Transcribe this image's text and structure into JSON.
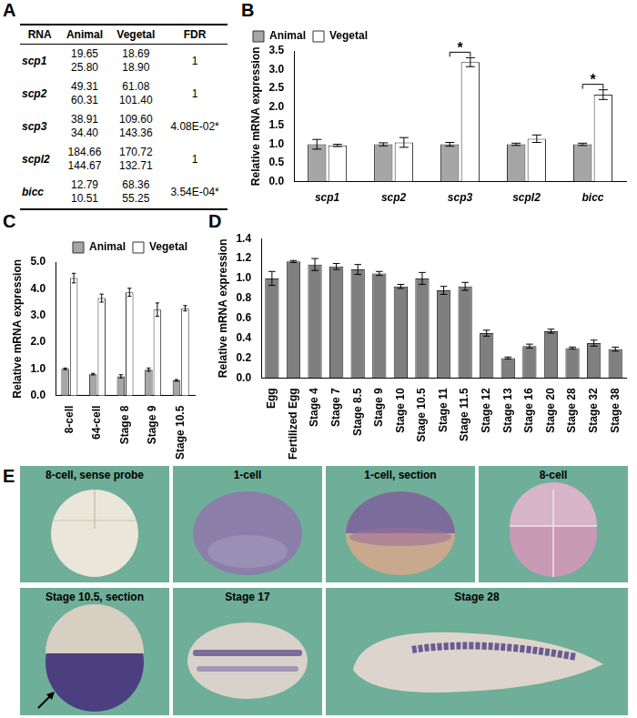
{
  "table": {
    "panel": "A",
    "header": [
      "RNA",
      "Animal",
      "Vegetal",
      "FDR"
    ],
    "rows": [
      [
        "scp1",
        [
          "19.65",
          "25.80"
        ],
        [
          "18.69",
          "18.90"
        ],
        "1"
      ],
      [
        "scp2",
        [
          "49.31",
          "60.31"
        ],
        [
          "61.08",
          "101.40"
        ],
        "1"
      ],
      [
        "scp3",
        [
          "38.91",
          "34.40"
        ],
        [
          "109.60",
          "143.36"
        ],
        "4.08E-02*"
      ],
      [
        "scpl2",
        [
          "184.66",
          "144.67"
        ],
        [
          "170.72",
          "132.71"
        ],
        "1"
      ],
      [
        "bicc",
        [
          "12.79",
          "10.51"
        ],
        [
          "68.36",
          "55.25"
        ],
        "3.54E-04*"
      ]
    ]
  },
  "chart_data": [
    {
      "panel": "B",
      "type": "bar",
      "categories": [
        "scp1",
        "scp2",
        "scp3",
        "scpl2",
        "bicc"
      ],
      "series": [
        {
          "name": "Animal",
          "color": "#a6a6a6",
          "values": [
            1.0,
            1.0,
            1.0,
            1.0,
            1.0
          ],
          "errors": [
            0.13,
            0.04,
            0.05,
            0.03,
            0.03
          ]
        },
        {
          "name": "Vegetal",
          "color": "#ffffff",
          "values": [
            0.97,
            1.05,
            3.2,
            1.15,
            2.33
          ],
          "errors": [
            0.03,
            0.13,
            0.12,
            0.1,
            0.13
          ]
        }
      ],
      "ylabel": "Relative mRNA expression",
      "ylim": [
        0,
        3.5
      ],
      "yticks": [
        {
          "value": 0,
          "label": "0.0"
        },
        {
          "value": 0.5,
          "label": "0.5"
        },
        {
          "value": 1,
          "label": "1.0"
        },
        {
          "value": 1.5,
          "label": "1.5"
        },
        {
          "value": 2,
          "label": "2.0"
        },
        {
          "value": 2.5,
          "label": "2.5"
        },
        {
          "value": 3,
          "label": "3.0"
        },
        {
          "value": 3.5,
          "label": "3.5"
        }
      ],
      "legend": "top-left",
      "annotations": [
        {
          "text": "*",
          "category": "scp3"
        },
        {
          "text": "*",
          "category": "bicc"
        }
      ]
    },
    {
      "panel": "C",
      "type": "bar",
      "categories": [
        "8-cell",
        "64-cell",
        "Stage 8",
        "Stage 9",
        "Stage 10.5"
      ],
      "series": [
        {
          "name": "Animal",
          "color": "#a6a6a6",
          "values": [
            1.0,
            0.8,
            0.72,
            0.97,
            0.57
          ],
          "errors": [
            0.03,
            0.03,
            0.06,
            0.06,
            0.03
          ]
        },
        {
          "name": "Vegetal",
          "color": "#ffffff",
          "values": [
            4.4,
            3.65,
            3.87,
            3.22,
            3.27
          ],
          "errors": [
            0.18,
            0.15,
            0.15,
            0.25,
            0.1
          ]
        }
      ],
      "ylabel": "Relative mRNA expression",
      "ylim": [
        0,
        5
      ],
      "yticks": [
        {
          "value": 0,
          "label": "0.0"
        },
        {
          "value": 1,
          "label": "1.0"
        },
        {
          "value": 2,
          "label": "2.0"
        },
        {
          "value": 3,
          "label": "3.0"
        },
        {
          "value": 4,
          "label": "4.0"
        },
        {
          "value": 5,
          "label": "5.0"
        }
      ],
      "legend": "top-right"
    },
    {
      "panel": "D",
      "type": "bar",
      "categories": [
        "Egg",
        "Fertilized Egg",
        "Stage 4",
        "Stage 7",
        "Stage 8.5",
        "Stage 9",
        "Stage 10",
        "Stage 10.5",
        "Stage 11",
        "Stage 11.5",
        "Stage 12",
        "Stage 13",
        "Stage 16",
        "Stage 20",
        "Stage 28",
        "Stage 32",
        "Stage 38"
      ],
      "values": [
        1.0,
        1.17,
        1.14,
        1.12,
        1.09,
        1.05,
        0.92,
        1.0,
        0.88,
        0.92,
        0.45,
        0.2,
        0.32,
        0.47,
        0.3,
        0.35,
        0.29
      ],
      "errors": [
        0.07,
        0.01,
        0.06,
        0.03,
        0.05,
        0.02,
        0.02,
        0.06,
        0.04,
        0.04,
        0.03,
        0.01,
        0.02,
        0.02,
        0.01,
        0.03,
        0.02
      ],
      "color": "#7f7f7f",
      "ylabel": "Relative mRNA expression",
      "ylim": [
        0,
        1.4
      ],
      "yticks": [
        {
          "value": 0,
          "label": "0.0"
        },
        {
          "value": 0.2,
          "label": "0.2"
        },
        {
          "value": 0.4,
          "label": "0.4"
        },
        {
          "value": 0.6,
          "label": "0.6"
        },
        {
          "value": 0.8,
          "label": "0.8"
        },
        {
          "value": 1,
          "label": "1.0"
        },
        {
          "value": 1.2,
          "label": "1.2"
        },
        {
          "value": 1.4,
          "label": "1.4"
        }
      ]
    }
  ],
  "images": {
    "panel": "E",
    "labels": [
      "8-cell, sense probe",
      "1-cell",
      "1-cell, section",
      "8-cell",
      "Stage 10.5, section",
      "Stage 17",
      "Stage 28"
    ]
  }
}
